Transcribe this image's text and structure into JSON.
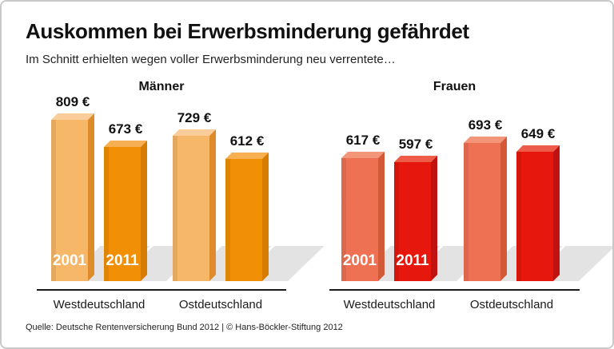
{
  "frame": {
    "title": "Auskommen bei Erwerbsminderung gefährdet",
    "subtitle": "Im Schnitt erhielten wegen voller Erwerbsminderung neu verrentete…",
    "source": "Quelle: Deutsche Rentenversicherung Bund 2012 | © Hans-Böckler-Stiftung 2012"
  },
  "palette": {
    "shadow": "#e3e3e3",
    "axis_line": "#1a1a1a",
    "year_text": "#ffffff"
  },
  "chart_data": {
    "type": "bar",
    "title": "Auskommen bei Erwerbsminderung gefährdet",
    "subtitle": "Im Schnitt erhielten wegen voller Erwerbsminderung neu verrentete…",
    "unit": "€",
    "ylim": [
      0,
      850
    ],
    "grid": false,
    "legend_years": [
      "2001",
      "2011"
    ],
    "groups": [
      {
        "label": "Männer",
        "colors": {
          "y2001": {
            "front": "#F6B768",
            "top": "#FACD9B",
            "side": "#DE8C2B"
          },
          "y2011": {
            "front": "#F29005",
            "top": "#F6B052",
            "side": "#D67C00"
          }
        },
        "regions": [
          {
            "label": "Westdeutschland",
            "bars": [
              {
                "year": "2001",
                "value": 809,
                "value_label": "809 €",
                "show_year": true
              },
              {
                "year": "2011",
                "value": 673,
                "value_label": "673 €",
                "show_year": true
              }
            ]
          },
          {
            "label": "Ostdeutschland",
            "bars": [
              {
                "year": "2001",
                "value": 729,
                "value_label": "729 €",
                "show_year": false
              },
              {
                "year": "2011",
                "value": 612,
                "value_label": "612 €",
                "show_year": false
              }
            ]
          }
        ]
      },
      {
        "label": "Frauen",
        "colors": {
          "y2001": {
            "front": "#EE7154",
            "top": "#F29579",
            "side": "#D25A38"
          },
          "y2011": {
            "front": "#E6170D",
            "top": "#EF5B49",
            "side": "#C01210"
          }
        },
        "regions": [
          {
            "label": "Westdeutschland",
            "bars": [
              {
                "year": "2001",
                "value": 617,
                "value_label": "617 €",
                "show_year": true
              },
              {
                "year": "2011",
                "value": 597,
                "value_label": "597 €",
                "show_year": true
              }
            ]
          },
          {
            "label": "Ostdeutschland",
            "bars": [
              {
                "year": "2001",
                "value": 693,
                "value_label": "693 €",
                "show_year": false
              },
              {
                "year": "2011",
                "value": 649,
                "value_label": "649 €",
                "show_year": false
              }
            ]
          }
        ]
      }
    ],
    "source": "Quelle: Deutsche Rentenversicherung Bund 2012 | © Hans-Böckler-Stiftung 2012"
  }
}
